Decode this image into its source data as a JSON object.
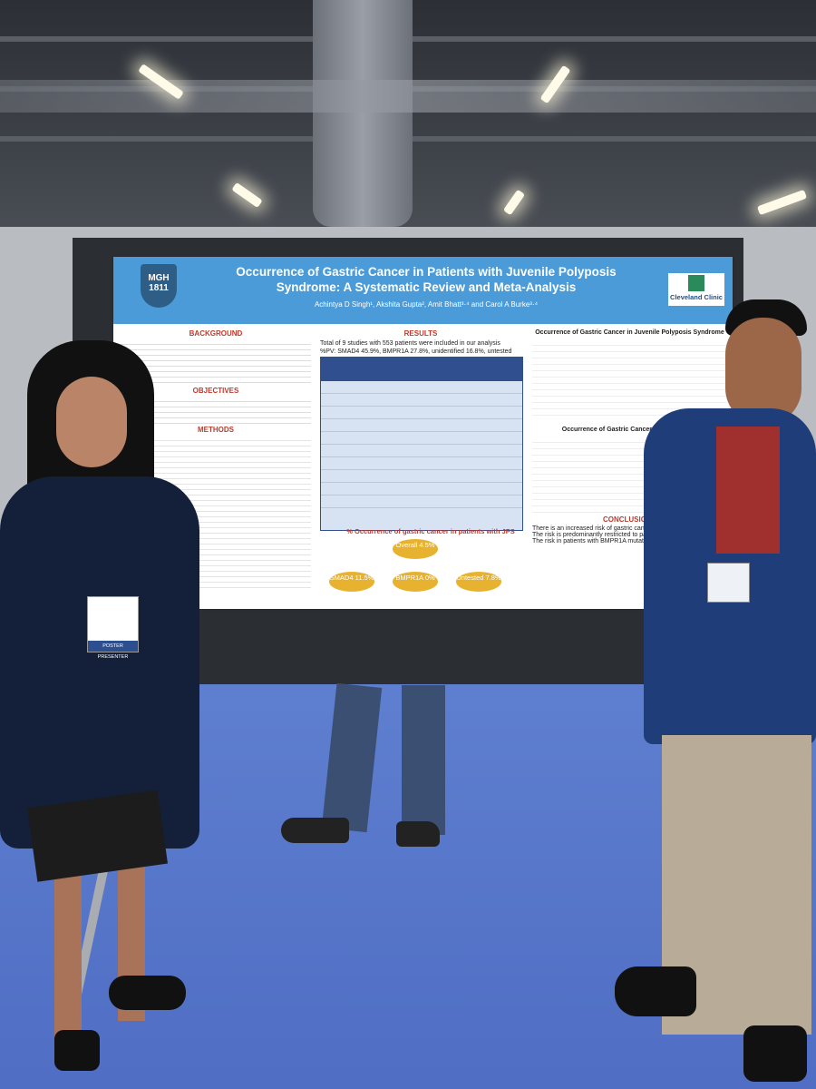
{
  "poster": {
    "title": "Occurrence of Gastric Cancer in Patients with Juvenile Polyposis Syndrome: A Systematic Review and Meta-Analysis",
    "authors": "Achintya D Singh¹, Akshita Gupta², Amit Bhatt³·⁴ and Carol A Burke³·⁴",
    "logo_left": "MGH 1811",
    "logo_right": "Cleveland Clinic",
    "sections": {
      "background": "BACKGROUND",
      "objectives": "OBJECTIVES",
      "methods": "METHODS",
      "results": "RESULTS",
      "conclusions": "CONCLUSIONS"
    },
    "results_lines": [
      "Total of 9 studies with 553 patients were included in our analysis",
      "%PV: SMAD4 45.9%, BMPR1A 27.8%, unidentified 16.8%, untested 9.4%"
    ],
    "chart_title": "% Occurrence of gastric cancer in patients with JPS",
    "ovals": {
      "overall": "Overall 4.5%",
      "smad4": "SMAD4 11.5%",
      "bmpr1a": "BMPR1A 0%",
      "untested": "Untested 7.8%"
    },
    "forest_title_1": "Occurrence of Gastric Cancer in Juvenile Polyposis Syndrome",
    "forest_title_2": "Occurrence of Gastric Cancer in SMAD4-JPS",
    "conclusions_lines": [
      "There is an increased risk of gastric cancer",
      "The risk is predominantly restricted to pa SMAD4 PV",
      "The risk in patients with BMPR1A mutation explored"
    ]
  },
  "badges": {
    "left": "POSTER PRESENTER"
  }
}
